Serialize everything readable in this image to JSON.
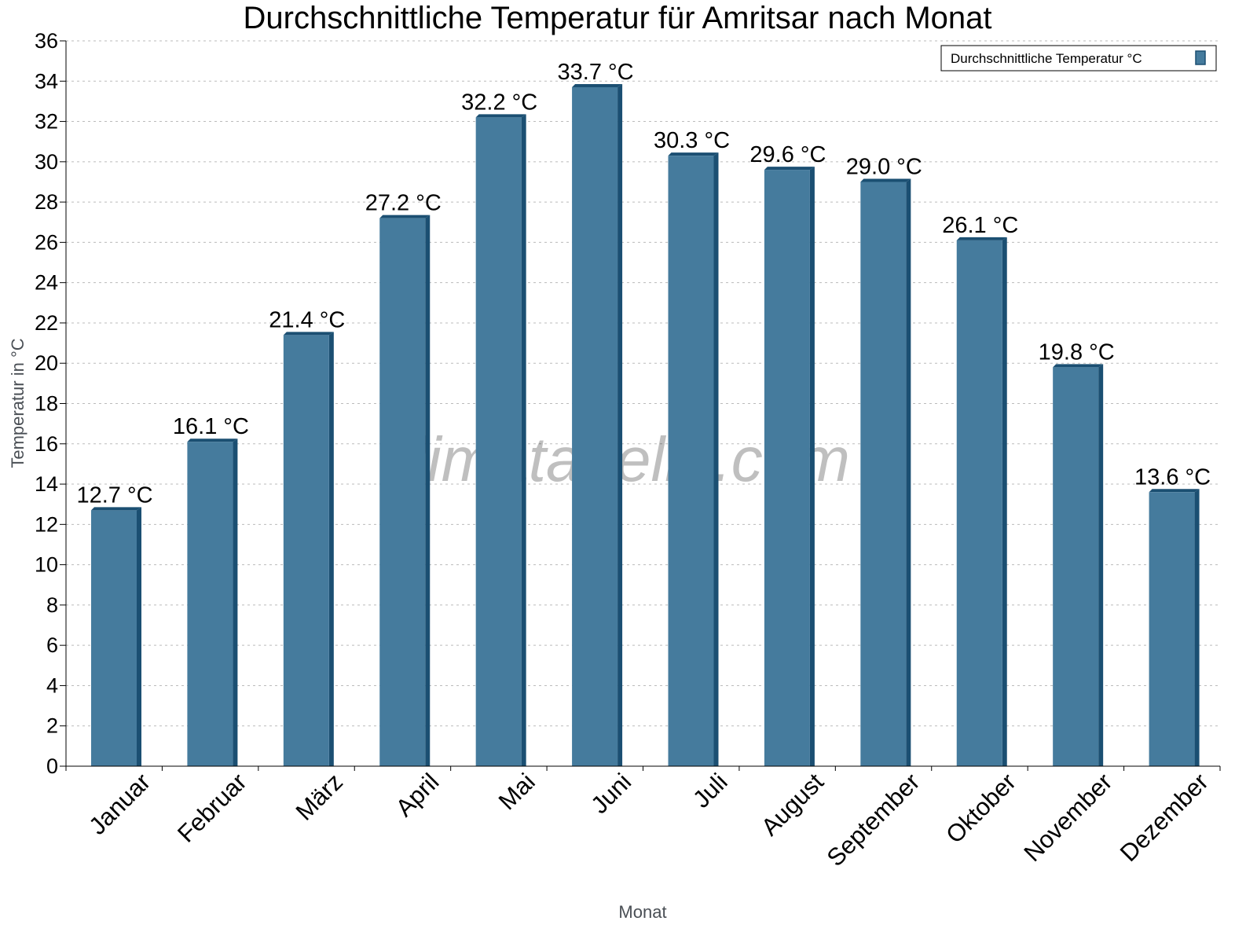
{
  "chart_data": {
    "type": "bar",
    "title": "Durchschnittliche Temperatur für Amritsar nach Monat",
    "xlabel": "Monat",
    "ylabel": "Temperatur in °C",
    "categories": [
      "Januar",
      "Februar",
      "März",
      "April",
      "Mai",
      "Juni",
      "Juli",
      "August",
      "September",
      "Oktober",
      "November",
      "Dezember"
    ],
    "series": [
      {
        "name": "Durchschnittliche Temperatur °C",
        "values": [
          12.7,
          16.1,
          21.4,
          27.2,
          32.2,
          33.7,
          30.3,
          29.6,
          29.0,
          26.1,
          19.8,
          13.6
        ]
      }
    ],
    "data_labels": [
      "12.7 °C",
      "16.1 °C",
      "21.4 °C",
      "27.2 °C",
      "32.2 °C",
      "33.7 °C",
      "30.3 °C",
      "29.6 °C",
      "29.0 °C",
      "26.1 °C",
      "19.8 °C",
      "13.6 °C"
    ],
    "ylim": [
      0,
      36
    ],
    "yticks": [
      0,
      2,
      4,
      6,
      8,
      10,
      12,
      14,
      16,
      18,
      20,
      22,
      24,
      26,
      28,
      30,
      32,
      34,
      36
    ],
    "grid": true,
    "legend_position": "top-right",
    "colors": {
      "bar_front": "#457b9d",
      "bar_side": "#1b4f72"
    },
    "watermark": "klimatabelle.com"
  }
}
